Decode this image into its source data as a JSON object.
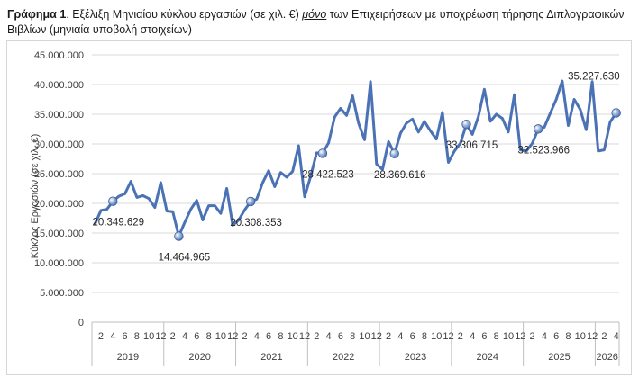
{
  "caption": {
    "lead": "Γράφημα 1",
    "part1": ". Εξέλιξη Μηνιαίου κύκλου εργασιών (σε χιλ. €) ",
    "emph": "μόνο",
    "part2": " των Επιχειρήσεων με υποχρέωση τήρησης Διπλογραφικών Βιβλίων (μηνιαία υποβολή στοιχείων)"
  },
  "colors": {
    "line": "#4a72b5",
    "marker": "#4a72b5",
    "grid": "#d9d9d9",
    "axis": "#bfbfbf"
  },
  "chart_data": {
    "type": "line",
    "title": "",
    "xlabel": "",
    "ylabel": "Κύκλος Εργασιών (σε χιλ. €)",
    "ylim": [
      0,
      45000000
    ],
    "y_ticks": [
      0,
      5000000,
      10000000,
      15000000,
      20000000,
      25000000,
      30000000,
      35000000,
      40000000,
      45000000
    ],
    "y_tick_labels": [
      "0",
      "5.000.000",
      "10.000.000",
      "15.000.000",
      "20.000.000",
      "25.000.000",
      "30.000.000",
      "35.000.000",
      "40.000.000",
      "45.000.000"
    ],
    "grid": true,
    "legend": "none",
    "years": [
      "2019",
      "2020",
      "2021",
      "2022",
      "2023",
      "2024",
      "2025",
      "2026"
    ],
    "month_tick_labels": [
      "2",
      "4",
      "6",
      "8",
      "10",
      "12"
    ],
    "start": "2019-01",
    "end": "2026-04",
    "series": [
      {
        "values": [
          16500000,
          18800000,
          19000000,
          20349629,
          21200000,
          21600000,
          23700000,
          21000000,
          21300000,
          20800000,
          19300000,
          23500000,
          18700000,
          18600000,
          14464965,
          16800000,
          19000000,
          20500000,
          17200000,
          19600000,
          19600000,
          18300000,
          22500000,
          16300000,
          17200000,
          18900000,
          20308353,
          20700000,
          23500000,
          25500000,
          22800000,
          25200000,
          24400000,
          25400000,
          29700000,
          21100000,
          24500000,
          28500000,
          28422523,
          30200000,
          34500000,
          36000000,
          34800000,
          38100000,
          33500000,
          30700000,
          40500000,
          26600000,
          25700000,
          30400000,
          28369616,
          31800000,
          33500000,
          34200000,
          32000000,
          33800000,
          32200000,
          30800000,
          35300000,
          26900000,
          28800000,
          30100000,
          33306715,
          31600000,
          34600000,
          39200000,
          33800000,
          35000000,
          34300000,
          32000000,
          38300000,
          29000000,
          28800000,
          30100000,
          32523966,
          32800000,
          35200000,
          37500000,
          40600000,
          33100000,
          37500000,
          35800000,
          32400000,
          40500000,
          28800000,
          29000000,
          33700000,
          35227630
        ]
      }
    ],
    "annotations": [
      {
        "month": "2019-04",
        "value": 20349629,
        "label": "20.349.629"
      },
      {
        "month": "2020-03",
        "value": 14464965,
        "label": "14.464.965"
      },
      {
        "month": "2021-03",
        "value": 20308353,
        "label": "20.308.353"
      },
      {
        "month": "2022-03",
        "value": 28422523,
        "label": "28.422.523"
      },
      {
        "month": "2023-03",
        "value": 28369616,
        "label": "28.369.616"
      },
      {
        "month": "2024-03",
        "value": 33306715,
        "label": "33.306.715"
      },
      {
        "month": "2025-03",
        "value": 32523966,
        "label": "32.523.966"
      },
      {
        "month": "2026-04",
        "value": 35227630,
        "label": "35.227.630"
      }
    ]
  }
}
